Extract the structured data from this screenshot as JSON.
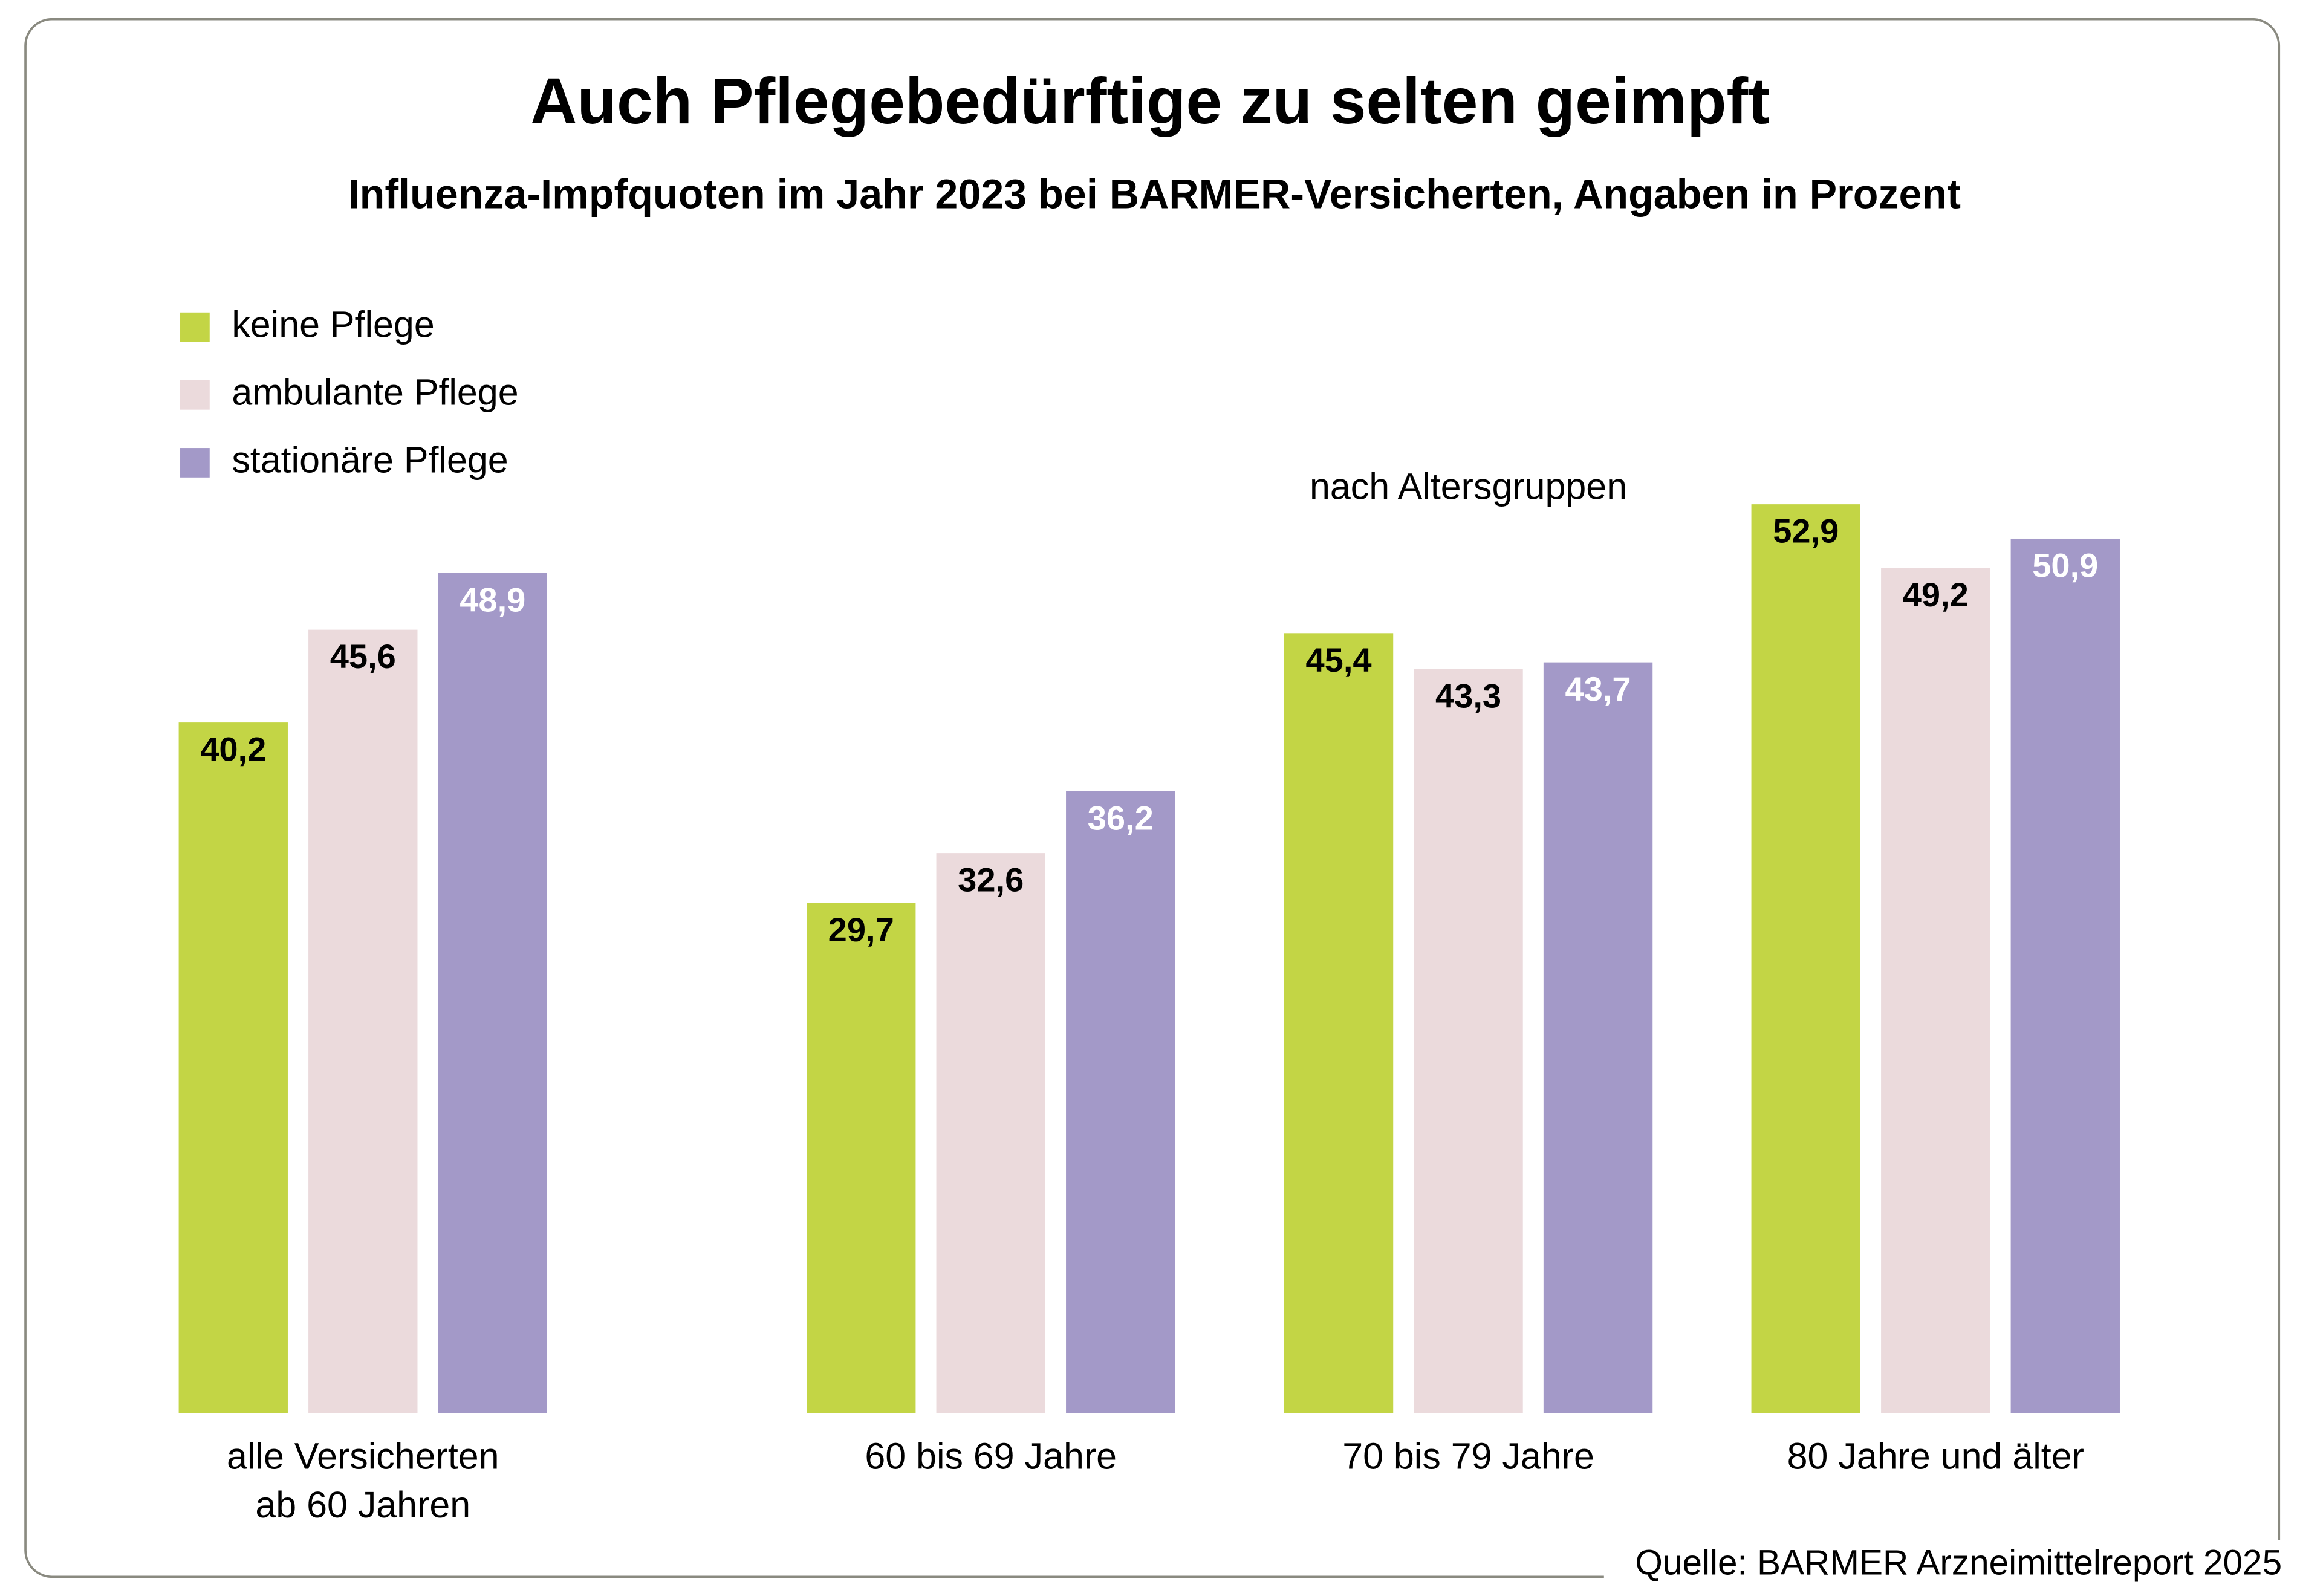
{
  "chart_data": {
    "type": "bar",
    "title": "Auch Pflegebedürftige zu selten geimpft",
    "subtitle": "Influenza-Impfquoten im Jahr 2023 bei BARMER-Versicherten, Angaben in Prozent",
    "annotation": "nach Altersgruppen",
    "source": "Quelle: BARMER Arzneimittelreport 2025",
    "categories": [
      [
        "alle Versicherten",
        "ab 60 Jahren"
      ],
      [
        "60 bis 69 Jahre"
      ],
      [
        "70 bis 79 Jahre"
      ],
      [
        "80 Jahre und älter"
      ]
    ],
    "series": [
      {
        "name": "keine Pflege",
        "color": "#c3d545",
        "label_color": "#000000",
        "values": [
          40.2,
          29.7,
          45.4,
          52.9
        ],
        "value_labels": [
          "40,2",
          "29,7",
          "45,4",
          "52,9"
        ]
      },
      {
        "name": "ambulante Pflege",
        "color": "#ebdadc",
        "label_color": "#000000",
        "values": [
          45.6,
          32.6,
          43.3,
          49.2
        ],
        "value_labels": [
          "45,6",
          "32,6",
          "43,3",
          "49,2"
        ]
      },
      {
        "name": "stationäre Pflege",
        "color": "#a399c8",
        "label_color": "#ffffff",
        "values": [
          48.9,
          36.2,
          43.7,
          50.9
        ],
        "value_labels": [
          "48,9",
          "36,2",
          "43,7",
          "50,9"
        ]
      }
    ],
    "ylim": [
      0,
      60
    ],
    "legend": "upper left"
  }
}
